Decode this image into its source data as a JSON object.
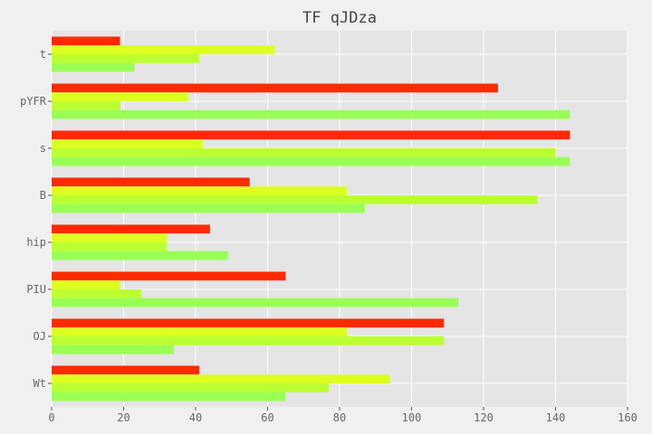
{
  "chart_data": {
    "type": "bar",
    "orientation": "horizontal",
    "title": "TF qJDza",
    "xlabel": "",
    "ylabel": "",
    "xlim": [
      0,
      160
    ],
    "x_ticks": [
      "0",
      "20",
      "40",
      "60",
      "80",
      "100",
      "120",
      "140",
      "160"
    ],
    "categories": [
      "Wt",
      "OJ",
      "PIU",
      "hip",
      "B",
      "s",
      "pYFR",
      "t"
    ],
    "series": [
      {
        "color": "#ff2a00",
        "values": [
          41,
          109,
          65,
          44,
          55,
          144,
          124,
          19
        ]
      },
      {
        "color": "#ddff22",
        "values": [
          94,
          82,
          19,
          32,
          82,
          42,
          38,
          62
        ]
      },
      {
        "color": "#bbff33",
        "values": [
          77,
          109,
          25,
          32,
          135,
          140,
          19,
          41
        ]
      },
      {
        "color": "#99ff55",
        "values": [
          65,
          34,
          113,
          49,
          87,
          144,
          144,
          23
        ]
      }
    ],
    "grid": true,
    "legend": "none",
    "background": "#e5e5e5"
  }
}
